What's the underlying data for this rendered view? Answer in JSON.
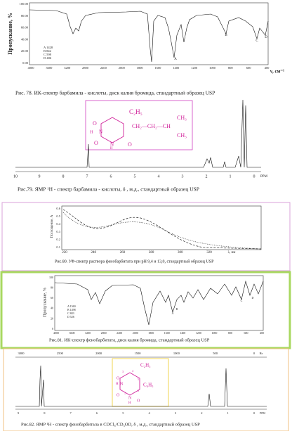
{
  "figures": [
    {
      "caption": "Рис. 78. ИК-спектр барбамила - кислоты, диск калия бромида, стандартный образец USP",
      "y_label": "Пропускание, %",
      "x_label": "ν, см⁻¹",
      "y_ticks": [
        "100.00",
        "80.00",
        "60.00",
        "40.00",
        "20.00",
        "0.00"
      ],
      "x_ticks": [
        "4000",
        "3600",
        "3200",
        "2800",
        "2400",
        "2000",
        "1800",
        "1600",
        "1400",
        "1200",
        "1000",
        "800",
        "600",
        "400"
      ],
      "peaks": [
        "A",
        "B",
        "C",
        "D"
      ],
      "legend": [
        "A 1428",
        "B 842",
        "C 598",
        "D 406"
      ]
    },
    {
      "caption": "Рис.79. ЯМР ¹Н - спектр  барбамила - кислоты, δ , м.д., стандартный образец USP",
      "x_ticks": [
        "10",
        "9",
        "8",
        "7",
        "6",
        "5",
        "4",
        "3",
        "2",
        "1",
        "0"
      ],
      "x_label": "PPM",
      "atoms": {
        "ethyl": "C₂H₅",
        "chain": "CH₂—CH₂—CH",
        "me1": "CH₃",
        "me2": "CH₃",
        "o1": "O",
        "o2": "O",
        "o3": "O",
        "n1": "N",
        "n2": "N",
        "h1": "H",
        "h2": "H"
      }
    },
    {
      "caption": "Рис.80. УФ-спектр раствора фенобарбитата при рН 9,4 и 13,0, стандартный образец USP",
      "y_label": "Поглощение, А",
      "y_ticks": [
        "0.6",
        "0.5",
        "0.4",
        "0.3",
        "0.2",
        "0.1"
      ],
      "x_ticks": [
        "220",
        "240",
        "260",
        "280",
        "300",
        "320"
      ],
      "x_label": "λ, нм"
    },
    {
      "caption": "Рис.81. ИК-спектр  фенобарбитата, диск калия бромида, стандартный образец USP",
      "y_label": "Пропускание, %",
      "y_ticks": [
        "100",
        "80",
        "60",
        "40",
        "20",
        "0"
      ],
      "x_ticks": [
        "4000",
        "3600",
        "3200",
        "2800",
        "2400",
        "2000",
        "1800",
        "1600",
        "1400",
        "1200",
        "1000",
        "800",
        "600",
        "400"
      ],
      "peaks": [
        "A",
        "B",
        "C",
        "D"
      ],
      "legend": [
        "A 1560",
        "B 1498",
        "C 843",
        "D 526"
      ]
    },
    {
      "caption": "Рис.82. ЯМР ¹Н - спектр  фенобарбитала в CDCl₃/CD₃OD, δ , м.д., стандартный образец USP",
      "hz_ticks": [
        "3000",
        "2500",
        "2000",
        "1500",
        "1000",
        "500",
        "0"
      ],
      "hz_label": "Hz",
      "x_ticks": [
        "9",
        "8",
        "7",
        "6",
        "5",
        "4",
        "3",
        "2",
        "1",
        "0"
      ],
      "x_label": "PPM",
      "atoms": {
        "ethyl": "C₂H₅",
        "phenyl": "C₆H₅",
        "o1": "O",
        "o2": "O",
        "o3": "O",
        "n1": "N",
        "n2": "N",
        "h1": "H",
        "h2": "H",
        "n3": "3",
        "n4": "4",
        "n5": "5",
        "n6": "6",
        "n1l": "1"
      }
    }
  ]
}
